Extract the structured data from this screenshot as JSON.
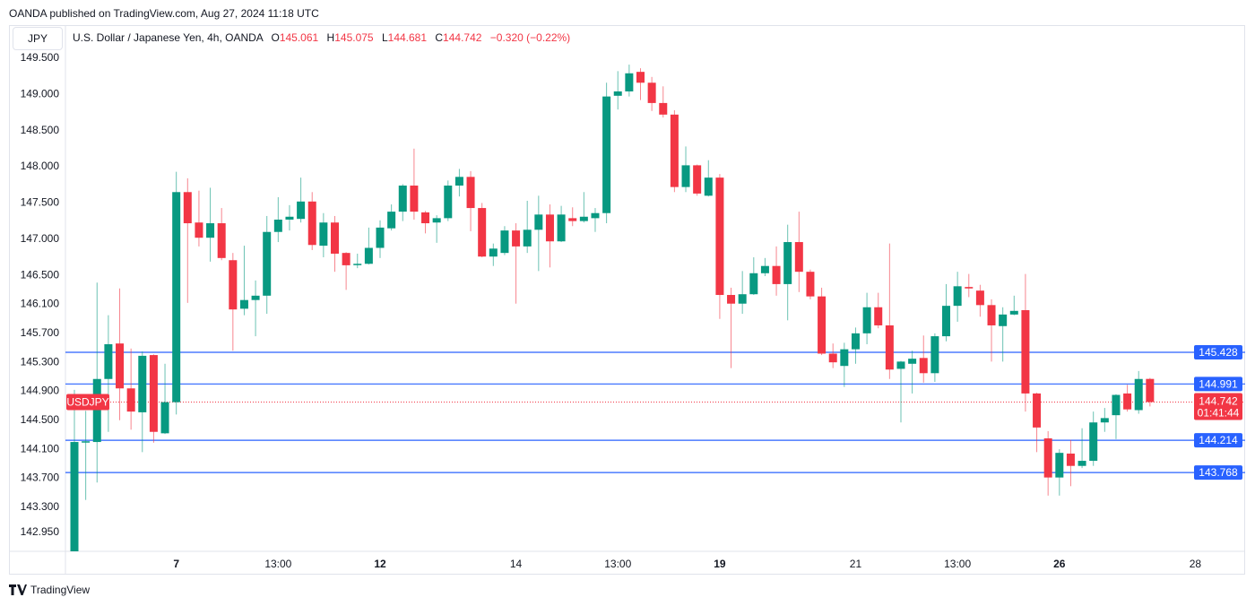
{
  "published": "OANDA published on TradingView.com, Aug 27, 2024 11:18 UTC",
  "symbol_box": "JPY",
  "legend": {
    "title": "U.S. Dollar / Japanese Yen, 4h, OANDA",
    "o_label": "O",
    "o": "145.061",
    "h_label": "H",
    "h": "145.075",
    "l_label": "L",
    "l": "144.681",
    "c_label": "C",
    "c": "144.742",
    "change": "−0.320 (−0.22%)"
  },
  "footer": {
    "brand": "TradingView",
    "logo": "TV"
  },
  "colors": {
    "up": "#089981",
    "down": "#f23645",
    "level": "#2962ff",
    "axis_text": "#131722"
  },
  "chart_data": {
    "type": "candlestick",
    "title": "U.S. Dollar / Japanese Yen, 4h, OANDA",
    "ylim": [
      142.85,
      149.85
    ],
    "y_ticks": [
      "149.500",
      "149.000",
      "148.500",
      "148.000",
      "147.500",
      "147.000",
      "146.500",
      "146.100",
      "145.700",
      "145.300",
      "144.900",
      "144.500",
      "144.100",
      "143.700",
      "143.300",
      "142.950"
    ],
    "x_ticks": [
      {
        "index": 9,
        "label": "7",
        "bold": true
      },
      {
        "index": 18,
        "label": "13:00",
        "bold": false
      },
      {
        "index": 27,
        "label": "12",
        "bold": true
      },
      {
        "index": 39,
        "label": "14",
        "bold": false
      },
      {
        "index": 48,
        "label": "13:00",
        "bold": false
      },
      {
        "index": 57,
        "label": "19",
        "bold": true
      },
      {
        "index": 69,
        "label": "21",
        "bold": false
      },
      {
        "index": 78,
        "label": "13:00",
        "bold": false
      },
      {
        "index": 87,
        "label": "26",
        "bold": true
      },
      {
        "index": 99,
        "label": "28",
        "bold": false
      }
    ],
    "levels": [
      {
        "price": 145.428,
        "label": "145.428"
      },
      {
        "price": 144.991,
        "label": "144.991"
      },
      {
        "price": 144.214,
        "label": "144.214"
      },
      {
        "price": 143.768,
        "label": "143.768"
      }
    ],
    "last_price": {
      "price": 144.742,
      "label": "144.742",
      "countdown": "01:41:44",
      "ticker": "USDJPY"
    },
    "ohlc": [
      [
        142.62,
        144.91,
        142.6,
        144.19
      ],
      [
        144.19,
        144.62,
        143.39,
        144.2
      ],
      [
        144.19,
        146.39,
        143.63,
        145.06
      ],
      [
        145.06,
        145.94,
        144.33,
        145.54
      ],
      [
        145.55,
        146.31,
        144.49,
        144.93
      ],
      [
        144.93,
        145.48,
        144.36,
        144.61
      ],
      [
        144.6,
        145.44,
        144.05,
        145.38
      ],
      [
        145.39,
        145.4,
        144.18,
        144.33
      ],
      [
        144.31,
        145.27,
        144.3,
        144.74
      ],
      [
        144.74,
        147.92,
        144.57,
        147.64
      ],
      [
        147.64,
        147.83,
        146.11,
        147.21
      ],
      [
        147.22,
        147.66,
        146.89,
        147.01
      ],
      [
        147.01,
        147.7,
        146.68,
        147.21
      ],
      [
        147.21,
        147.42,
        146.7,
        146.73
      ],
      [
        146.7,
        146.8,
        145.45,
        146.02
      ],
      [
        146.03,
        146.9,
        145.94,
        146.15
      ],
      [
        146.15,
        146.42,
        145.65,
        146.21
      ],
      [
        146.21,
        147.31,
        145.96,
        147.09
      ],
      [
        147.09,
        147.57,
        146.95,
        147.26
      ],
      [
        147.26,
        147.46,
        147.11,
        147.3
      ],
      [
        147.27,
        147.84,
        147.22,
        147.51
      ],
      [
        147.51,
        147.64,
        146.84,
        146.91
      ],
      [
        146.9,
        147.35,
        146.74,
        147.22
      ],
      [
        147.22,
        147.31,
        146.54,
        146.79
      ],
      [
        146.8,
        146.81,
        146.29,
        146.63
      ],
      [
        146.64,
        146.79,
        146.59,
        146.65
      ],
      [
        146.65,
        147.15,
        146.64,
        146.87
      ],
      [
        146.87,
        147.25,
        146.73,
        147.15
      ],
      [
        147.14,
        147.47,
        147.11,
        147.37
      ],
      [
        147.37,
        147.75,
        147.24,
        147.73
      ],
      [
        147.73,
        148.24,
        147.26,
        147.37
      ],
      [
        147.36,
        147.38,
        147.07,
        147.21
      ],
      [
        147.22,
        147.32,
        146.94,
        147.28
      ],
      [
        147.28,
        147.8,
        147.24,
        147.73
      ],
      [
        147.73,
        147.96,
        147.58,
        147.85
      ],
      [
        147.85,
        147.93,
        147.1,
        147.42
      ],
      [
        147.42,
        147.49,
        146.74,
        146.75
      ],
      [
        146.75,
        146.93,
        146.62,
        146.86
      ],
      [
        146.8,
        147.17,
        146.77,
        147.11
      ],
      [
        147.11,
        147.21,
        146.1,
        146.89
      ],
      [
        146.89,
        147.52,
        146.8,
        147.12
      ],
      [
        147.12,
        147.59,
        146.55,
        147.33
      ],
      [
        147.33,
        147.47,
        146.6,
        146.96
      ],
      [
        146.96,
        147.45,
        146.95,
        147.33
      ],
      [
        147.28,
        147.43,
        147.17,
        147.24
      ],
      [
        147.24,
        147.64,
        147.22,
        147.3
      ],
      [
        147.28,
        147.42,
        147.09,
        147.35
      ],
      [
        147.35,
        149.15,
        147.21,
        148.96
      ],
      [
        148.97,
        149.31,
        148.78,
        149.03
      ],
      [
        149.03,
        149.4,
        148.96,
        149.28
      ],
      [
        149.3,
        149.35,
        148.91,
        149.15
      ],
      [
        149.15,
        149.23,
        148.76,
        148.87
      ],
      [
        148.87,
        149.1,
        148.67,
        148.71
      ],
      [
        148.71,
        148.77,
        147.64,
        147.71
      ],
      [
        147.71,
        148.27,
        147.64,
        148.01
      ],
      [
        148.01,
        148.02,
        147.59,
        147.62
      ],
      [
        147.59,
        148.08,
        147.58,
        147.84
      ],
      [
        147.84,
        147.89,
        145.89,
        146.22
      ],
      [
        146.22,
        146.32,
        145.21,
        146.1
      ],
      [
        146.1,
        146.55,
        145.96,
        146.23
      ],
      [
        146.23,
        146.74,
        146.22,
        146.52
      ],
      [
        146.52,
        146.73,
        146.48,
        146.62
      ],
      [
        146.62,
        146.89,
        146.21,
        146.37
      ],
      [
        146.37,
        147.19,
        145.87,
        146.95
      ],
      [
        146.95,
        147.37,
        146.26,
        146.54
      ],
      [
        146.54,
        146.57,
        146.16,
        146.2
      ],
      [
        146.2,
        146.32,
        145.39,
        145.41
      ],
      [
        145.41,
        145.55,
        145.21,
        145.29
      ],
      [
        145.24,
        145.56,
        144.95,
        145.47
      ],
      [
        145.47,
        145.77,
        145.27,
        145.69
      ],
      [
        145.69,
        146.25,
        145.54,
        146.05
      ],
      [
        146.05,
        146.25,
        145.76,
        145.8
      ],
      [
        145.8,
        146.93,
        145.06,
        145.19
      ],
      [
        145.2,
        145.31,
        144.46,
        145.3
      ],
      [
        145.27,
        145.45,
        144.86,
        145.34
      ],
      [
        145.35,
        145.66,
        145.01,
        145.14
      ],
      [
        145.14,
        145.69,
        145.02,
        145.65
      ],
      [
        145.65,
        146.37,
        145.58,
        146.07
      ],
      [
        146.07,
        146.54,
        145.85,
        146.34
      ],
      [
        146.33,
        146.51,
        146.19,
        146.31
      ],
      [
        146.28,
        146.36,
        145.92,
        146.08
      ],
      [
        146.08,
        146.16,
        145.3,
        145.8
      ],
      [
        145.79,
        146.05,
        145.3,
        145.95
      ],
      [
        145.95,
        146.21,
        145.94,
        146.0
      ],
      [
        146.01,
        146.51,
        144.61,
        144.86
      ],
      [
        144.86,
        144.87,
        144.05,
        144.39
      ],
      [
        144.24,
        144.34,
        143.45,
        143.7
      ],
      [
        143.7,
        144.09,
        143.45,
        144.04
      ],
      [
        144.03,
        144.22,
        143.58,
        143.86
      ],
      [
        143.86,
        144.38,
        143.83,
        143.93
      ],
      [
        143.93,
        144.61,
        143.86,
        144.46
      ],
      [
        144.46,
        144.66,
        144.33,
        144.52
      ],
      [
        144.56,
        144.85,
        144.23,
        144.84
      ],
      [
        144.86,
        144.98,
        144.61,
        144.64
      ],
      [
        144.63,
        145.17,
        144.58,
        145.06
      ],
      [
        145.061,
        145.075,
        144.681,
        144.742
      ]
    ]
  }
}
